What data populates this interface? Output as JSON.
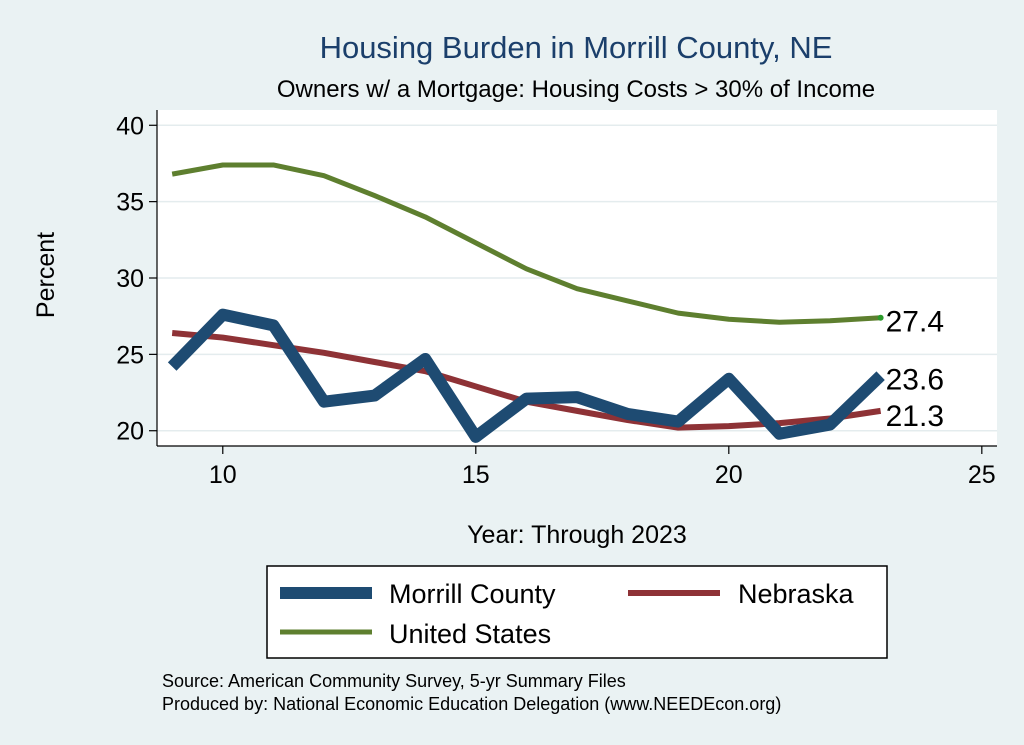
{
  "chart_data": {
    "type": "line",
    "title": "Housing Burden in Morrill County, NE",
    "subtitle": "Owners w/ a Mortgage: Housing Costs > 30% of Income",
    "xlabel": "Year: Through 2023",
    "ylabel": "Percent",
    "xlim": [
      8.7,
      25.3
    ],
    "ylim": [
      19,
      41
    ],
    "xticks": [
      10,
      15,
      20,
      25
    ],
    "yticks": [
      20,
      25,
      30,
      35,
      40
    ],
    "grid": true,
    "legend_position": "bottom",
    "x": [
      9,
      10,
      11,
      12,
      13,
      14,
      15,
      16,
      17,
      18,
      19,
      20,
      21,
      22,
      23
    ],
    "series": [
      {
        "name": "Morrill County",
        "color": "#1e4b72",
        "values": [
          24.2,
          27.6,
          26.9,
          21.9,
          22.3,
          24.7,
          19.6,
          22.1,
          22.2,
          21.1,
          20.6,
          23.4,
          19.8,
          20.4,
          23.6
        ],
        "end_label": "23.6"
      },
      {
        "name": "Nebraska",
        "color": "#8e3236",
        "values": [
          26.4,
          26.1,
          25.6,
          25.1,
          24.5,
          23.9,
          22.9,
          21.9,
          21.3,
          20.7,
          20.2,
          20.3,
          20.5,
          20.8,
          21.3
        ],
        "end_label": "21.3"
      },
      {
        "name": "United States",
        "color": "#5e7f2f",
        "values": [
          36.8,
          37.4,
          37.4,
          36.7,
          35.4,
          34.0,
          32.3,
          30.6,
          29.3,
          28.5,
          27.7,
          27.3,
          27.1,
          27.2,
          27.4
        ],
        "end_label": "27.4"
      }
    ]
  },
  "notes": {
    "source": "Source: American Community Survey, 5-yr Summary Files",
    "produced": "Produced by: National Economic Education Delegation (www.NEEDEcon.org)"
  }
}
